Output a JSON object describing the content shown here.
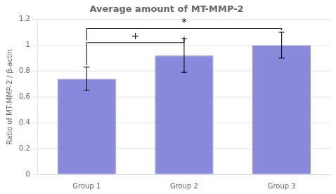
{
  "chart_data": {
    "type": "bar",
    "title": "Average amount of MT-MMP-2",
    "ylabel": "Ratio of MT-MMP-2 / β-actin",
    "categories": [
      "Group 1",
      "Group 2",
      "Group 3"
    ],
    "values": [
      0.74,
      0.92,
      1.0
    ],
    "errors": [
      0.09,
      0.13,
      0.1
    ],
    "color": "#8888dd",
    "ylim": [
      0,
      1.2
    ],
    "yticks": [
      0,
      0.2,
      0.4,
      0.6,
      0.8,
      1.0,
      1.2
    ],
    "grid": true,
    "annotations": [
      {
        "text": "+",
        "from": "Group 1",
        "to": "Group 2",
        "y": 1.02
      },
      {
        "text": "*",
        "from": "Group 1",
        "to": "Group 3",
        "y": 1.13
      }
    ]
  }
}
